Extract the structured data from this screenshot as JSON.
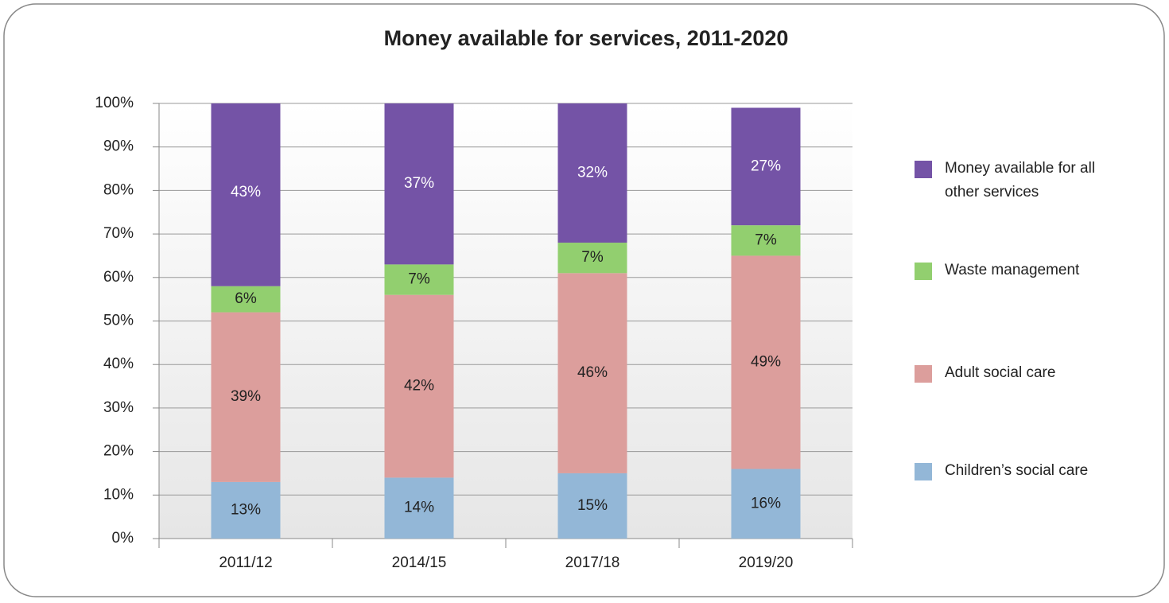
{
  "chart_data": {
    "type": "stacked_bar",
    "title": "Money available for services, 2011-2020",
    "categories": [
      "2011/12",
      "2014/15",
      "2017/18",
      "2019/20"
    ],
    "series": [
      {
        "name": "Children’s social care",
        "color": "#93b7d7",
        "label_color": "#222222",
        "values": [
          13,
          14,
          15,
          16
        ],
        "value_labels": [
          "13%",
          "14%",
          "15%",
          "16%"
        ]
      },
      {
        "name": "Adult social care",
        "color": "#dc9e9c",
        "label_color": "#222222",
        "values": [
          39,
          42,
          46,
          49
        ],
        "value_labels": [
          "39%",
          "42%",
          "46%",
          "49%"
        ]
      },
      {
        "name": "Waste management",
        "color": "#92cf6f",
        "label_color": "#222222",
        "values": [
          6,
          7,
          7,
          7
        ],
        "value_labels": [
          "6%",
          "7%",
          "7%",
          "7%"
        ]
      },
      {
        "name": "Money available for all other services",
        "color": "#7453a6",
        "label_color": "#ffffff",
        "values": [
          43,
          37,
          32,
          27
        ],
        "value_labels": [
          "43%",
          "37%",
          "32%",
          "27%"
        ]
      }
    ],
    "ylim": [
      0,
      100
    ],
    "yticks": [
      {
        "value": 0,
        "label": "0%"
      },
      {
        "value": 10,
        "label": "10%"
      },
      {
        "value": 20,
        "label": "20%"
      },
      {
        "value": 30,
        "label": "30%"
      },
      {
        "value": 40,
        "label": "40%"
      },
      {
        "value": 50,
        "label": "50%"
      },
      {
        "value": 60,
        "label": "60%"
      },
      {
        "value": 70,
        "label": "70%"
      },
      {
        "value": 80,
        "label": "80%"
      },
      {
        "value": 90,
        "label": "90%"
      },
      {
        "value": 100,
        "label": "100%"
      }
    ],
    "grid": true,
    "legend": "right"
  }
}
